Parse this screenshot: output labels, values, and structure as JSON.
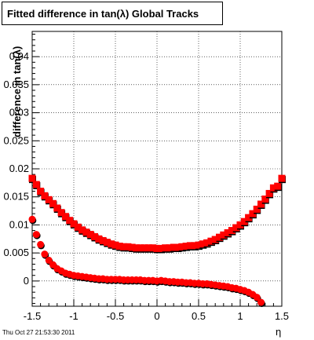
{
  "header": {
    "title": "Fitted difference in tan(λ)  Global Tracks",
    "timestamp": "Thu Oct 27 21:53:30 2011"
  },
  "chart_data": {
    "type": "scatter",
    "title": "Fitted difference in tan(λ)  Global Tracks",
    "xlabel": "η",
    "ylabel": "difference in tan(λ)",
    "xlim": [
      -1.5,
      1.5
    ],
    "ylim": [
      -0.0045,
      0.0445
    ],
    "grid": true,
    "x_ticks": [
      -1.5,
      -1,
      -0.5,
      0,
      0.5,
      1,
      1.5
    ],
    "x_tick_labels": [
      "-1.5",
      "-1",
      "-0.5",
      "0",
      "0.5",
      "1",
      "1.5"
    ],
    "y_ticks": [
      0,
      0.005,
      0.01,
      0.015,
      0.02,
      0.025,
      0.03,
      0.035,
      0.04
    ],
    "y_tick_labels": [
      "0",
      "0.005",
      "0.01",
      "0.015",
      "0.02",
      "0.025",
      "0.03",
      "0.035",
      "0.04"
    ],
    "series": [
      {
        "marker": "square",
        "color_back": "#000000",
        "color_front": "#ff0000",
        "x": [
          -1.5,
          -1.45,
          -1.4,
          -1.35,
          -1.3,
          -1.25,
          -1.2,
          -1.15,
          -1.1,
          -1.05,
          -1.0,
          -0.95,
          -0.9,
          -0.85,
          -0.8,
          -0.75,
          -0.7,
          -0.65,
          -0.6,
          -0.55,
          -0.5,
          -0.45,
          -0.4,
          -0.35,
          -0.3,
          -0.25,
          -0.2,
          -0.15,
          -0.1,
          -0.05,
          0.0,
          0.05,
          0.1,
          0.15,
          0.2,
          0.25,
          0.3,
          0.35,
          0.4,
          0.45,
          0.5,
          0.55,
          0.6,
          0.65,
          0.7,
          0.75,
          0.8,
          0.85,
          0.9,
          0.95,
          1.0,
          1.05,
          1.1,
          1.15,
          1.2,
          1.25,
          1.3,
          1.35,
          1.4,
          1.45,
          1.5
        ],
        "y": [
          0.0183,
          0.0172,
          0.016,
          0.0152,
          0.0145,
          0.0138,
          0.013,
          0.0122,
          0.0115,
          0.0108,
          0.0102,
          0.0096,
          0.0091,
          0.0087,
          0.0083,
          0.0079,
          0.0075,
          0.0072,
          0.0069,
          0.0066,
          0.0064,
          0.0062,
          0.0061,
          0.0061,
          0.006,
          0.0059,
          0.0059,
          0.0059,
          0.0059,
          0.0059,
          0.0058,
          0.0058,
          0.0059,
          0.0059,
          0.006,
          0.006,
          0.0061,
          0.0062,
          0.0063,
          0.0063,
          0.0064,
          0.0066,
          0.0068,
          0.0071,
          0.0074,
          0.0078,
          0.0082,
          0.0086,
          0.009,
          0.0095,
          0.01,
          0.0106,
          0.0113,
          0.012,
          0.0128,
          0.0137,
          0.0146,
          0.0156,
          0.0166,
          0.0169,
          0.0183
        ]
      },
      {
        "marker": "circle",
        "color_back": "#000000",
        "color_front": "#ff0000",
        "x": [
          -1.5,
          -1.45,
          -1.4,
          -1.35,
          -1.3,
          -1.25,
          -1.2,
          -1.15,
          -1.1,
          -1.05,
          -1.0,
          -0.95,
          -0.9,
          -0.85,
          -0.8,
          -0.75,
          -0.7,
          -0.65,
          -0.6,
          -0.55,
          -0.5,
          -0.45,
          -0.4,
          -0.35,
          -0.3,
          -0.25,
          -0.2,
          -0.15,
          -0.1,
          -0.05,
          0.0,
          0.05,
          0.1,
          0.15,
          0.2,
          0.25,
          0.3,
          0.35,
          0.4,
          0.45,
          0.5,
          0.55,
          0.6,
          0.65,
          0.7,
          0.75,
          0.8,
          0.85,
          0.9,
          0.95,
          1.0,
          1.05,
          1.1,
          1.15,
          1.2,
          1.25
        ],
        "y": [
          0.011,
          0.0083,
          0.0065,
          0.0048,
          0.0037,
          0.0029,
          0.0022,
          0.0018,
          0.0014,
          0.0012,
          0.001,
          0.0009,
          0.0008,
          0.0007,
          0.0006,
          0.0005,
          0.0004,
          0.0004,
          0.0003,
          0.0003,
          0.0003,
          0.0003,
          0.0002,
          0.0002,
          0.0002,
          0.0002,
          0.0002,
          0.0001,
          0.0001,
          0.0001,
          0.0,
          0.0001,
          0.0,
          -0.0001,
          -0.0001,
          -0.0002,
          -0.0002,
          -0.0003,
          -0.0003,
          -0.0004,
          -0.0004,
          -0.0005,
          -0.0005,
          -0.0006,
          -0.0007,
          -0.0008,
          -0.0009,
          -0.001,
          -0.0012,
          -0.0013,
          -0.0015,
          -0.0017,
          -0.002,
          -0.0024,
          -0.0029,
          -0.0038
        ]
      }
    ]
  }
}
